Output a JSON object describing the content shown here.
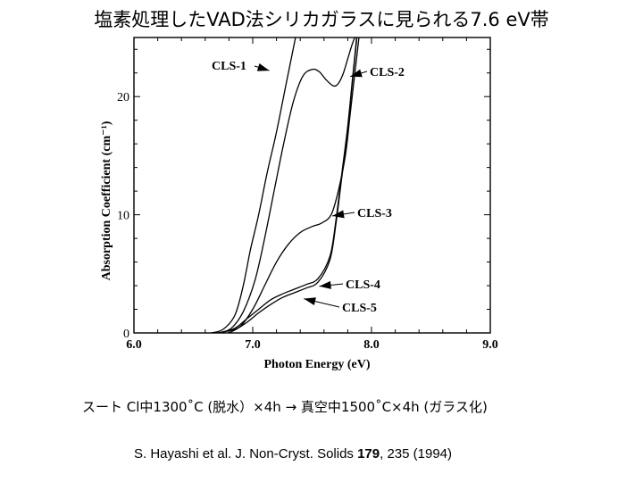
{
  "slide": {
    "title": "塩素処理したVAD法シリカガラスに見られる7.6 eV帯",
    "caption": "スート Cl中1300˚C (脱水）×4h → 真空中1500˚C×4h (ガラス化)",
    "citation": {
      "authors": "S. Hayashi et al.  J. Non-Cryst. Solids ",
      "volume": "179",
      "pages": ", 235 (1994)"
    }
  },
  "chart_data": {
    "type": "line",
    "title": "",
    "xlabel": "Photon Energy (eV)",
    "ylabel": "Absorption Coefficient (cm⁻¹)",
    "xlim": [
      6.0,
      9.0
    ],
    "ylim": [
      0,
      25
    ],
    "x_ticks": [
      "6.0",
      "7.0",
      "8.0",
      "9.0"
    ],
    "y_ticks": [
      "0",
      "10",
      "20"
    ],
    "grid": false,
    "series": [
      {
        "name": "CLS-1",
        "x": [
          6.65,
          6.75,
          6.85,
          6.92,
          6.98,
          7.05,
          7.12,
          7.2,
          7.28,
          7.36
        ],
        "values": [
          0,
          0.3,
          1.5,
          4,
          7,
          10,
          13.5,
          17,
          21,
          25
        ]
      },
      {
        "name": "CLS-2",
        "x": [
          6.72,
          6.82,
          6.92,
          7.02,
          7.1,
          7.18,
          7.26,
          7.34,
          7.42,
          7.5,
          7.56,
          7.62,
          7.68,
          7.72,
          7.76,
          7.8,
          7.84,
          7.88
        ],
        "values": [
          0,
          0.4,
          1.8,
          4.5,
          8,
          12,
          16,
          19.5,
          21.7,
          22.3,
          22.1,
          21.4,
          20.9,
          21.1,
          21.9,
          23.2,
          24.5,
          25.5
        ]
      },
      {
        "name": "CLS-3",
        "x": [
          6.8,
          6.9,
          7.0,
          7.1,
          7.2,
          7.3,
          7.4,
          7.5,
          7.58,
          7.66,
          7.72,
          7.78,
          7.82,
          7.86,
          7.9
        ],
        "values": [
          0,
          0.6,
          2.0,
          4.0,
          6.0,
          7.5,
          8.5,
          9.0,
          9.3,
          10.0,
          12.0,
          15.0,
          18.5,
          22.0,
          25.5
        ]
      },
      {
        "name": "CLS-4",
        "x": [
          6.72,
          6.85,
          6.95,
          7.05,
          7.15,
          7.25,
          7.35,
          7.45,
          7.55,
          7.65,
          7.7,
          7.75,
          7.8,
          7.84,
          7.88
        ],
        "values": [
          0,
          0.4,
          1.2,
          2.0,
          2.8,
          3.3,
          3.7,
          4.1,
          4.6,
          6.5,
          9.5,
          13.5,
          17.5,
          21.5,
          25.5
        ]
      },
      {
        "name": "CLS-5",
        "x": [
          6.7,
          6.85,
          6.95,
          7.05,
          7.15,
          7.25,
          7.35,
          7.45,
          7.55,
          7.65,
          7.7,
          7.75,
          7.8,
          7.84,
          7.88
        ],
        "values": [
          0,
          0.3,
          0.9,
          1.7,
          2.4,
          3.0,
          3.4,
          3.8,
          4.3,
          6.2,
          9.2,
          13.2,
          17.3,
          21.3,
          25.3
        ]
      }
    ],
    "annotations": [
      {
        "label": "CLS-1",
        "x": 7.14,
        "y": 22.2
      },
      {
        "label": "CLS-2",
        "x": 7.82,
        "y": 21.7
      },
      {
        "label": "CLS-3",
        "x": 7.67,
        "y": 9.9
      },
      {
        "label": "CLS-4",
        "x": 7.56,
        "y": 3.95
      },
      {
        "label": "CLS-5",
        "x": 7.43,
        "y": 2.9
      }
    ]
  }
}
